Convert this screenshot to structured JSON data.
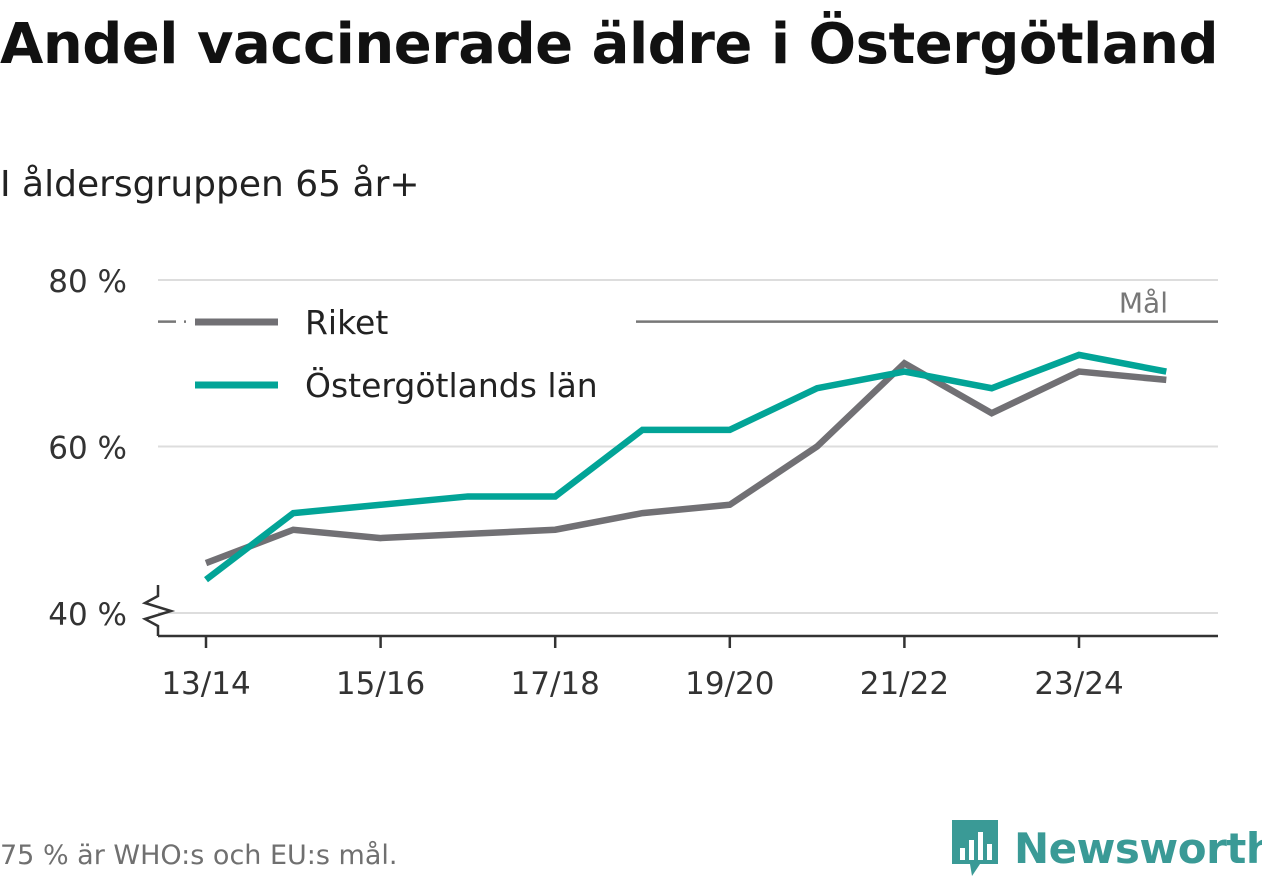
{
  "header": {
    "title": "Andel vaccinerade äldre i Östergötland",
    "subtitle": "I åldersgruppen 65 år+"
  },
  "footer": {
    "note": "75 % är WHO:s och EU:s mål.",
    "brand": "Newsworthy"
  },
  "colors": {
    "riket": "#717074",
    "ostergotland": "#02a497",
    "grid": "#dddddd",
    "axis": "#333333",
    "target": "#777777",
    "brand": "#3a9a96"
  },
  "chart_data": {
    "type": "line",
    "title": "Andel vaccinerade äldre i Östergötland",
    "subtitle": "I åldersgruppen 65 år+",
    "xlabel": "",
    "ylabel": "",
    "x": [
      "13/14",
      "14/15",
      "15/16",
      "16/17",
      "17/18",
      "18/19",
      "19/20",
      "20/21",
      "21/22",
      "22/23",
      "23/24",
      "24/25"
    ],
    "x_tick_labels": [
      "13/14",
      "15/16",
      "17/18",
      "19/20",
      "21/22",
      "23/24"
    ],
    "ylim": [
      40,
      80
    ],
    "y_ticks": [
      {
        "value": 40,
        "label": "40 %"
      },
      {
        "value": 60,
        "label": "60 %"
      },
      {
        "value": 80,
        "label": "80 %"
      }
    ],
    "grid": true,
    "axis_break": true,
    "series": [
      {
        "name": "Riket",
        "values": [
          46,
          50,
          49,
          49.5,
          50,
          52,
          53,
          60,
          70,
          64,
          69,
          68
        ]
      },
      {
        "name": "Östergötlands län",
        "values": [
          44,
          52,
          53,
          54,
          54,
          62,
          62,
          67,
          69,
          67,
          71,
          69
        ]
      }
    ],
    "target": {
      "value": 75,
      "label": "Mål"
    },
    "legend": {
      "position": "top-left"
    }
  }
}
